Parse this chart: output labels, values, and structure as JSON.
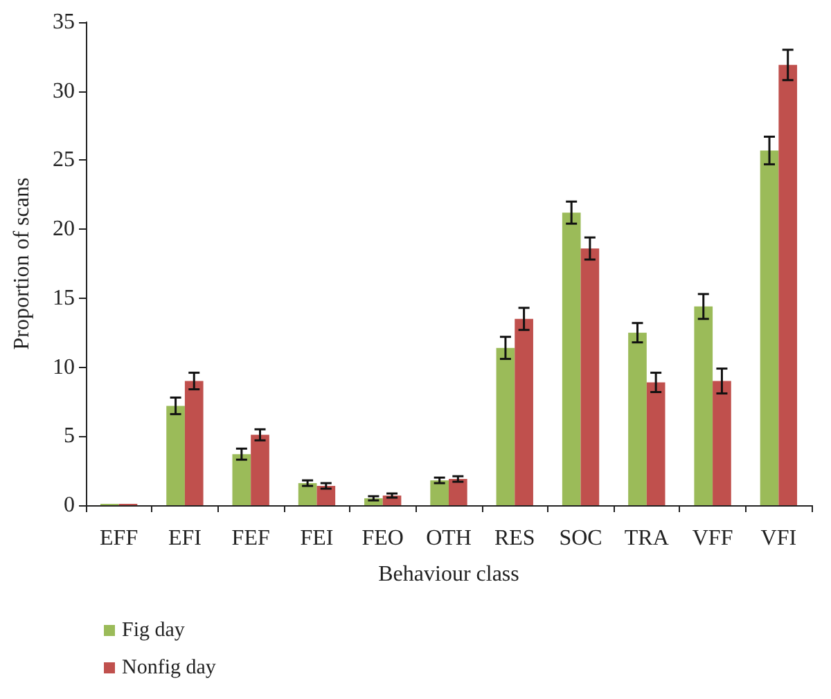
{
  "chart_data": {
    "type": "bar",
    "xlabel": "Behaviour class",
    "ylabel": "Proportion of scans",
    "categories": [
      "EFF",
      "EFI",
      "FEF",
      "FEI",
      "FEO",
      "OTH",
      "RES",
      "SOC",
      "TRA",
      "VFF",
      "VFI"
    ],
    "series": [
      {
        "name": "Fig day",
        "color": "#9bbb59",
        "values": [
          0.1,
          7.2,
          3.7,
          1.6,
          0.5,
          1.8,
          11.4,
          21.2,
          12.5,
          14.4,
          25.7
        ],
        "errors": [
          null,
          0.6,
          0.4,
          0.2,
          0.15,
          0.2,
          0.8,
          0.8,
          0.7,
          0.9,
          1.0
        ]
      },
      {
        "name": "Nonfig day",
        "color": "#c0504d",
        "values": [
          0.1,
          9.0,
          5.1,
          1.4,
          0.7,
          1.9,
          13.5,
          18.6,
          8.9,
          9.0,
          31.9
        ],
        "errors": [
          null,
          0.6,
          0.4,
          0.2,
          0.15,
          0.2,
          0.8,
          0.8,
          0.7,
          0.9,
          1.1
        ]
      }
    ],
    "ylim": [
      0,
      35
    ],
    "yticks": [
      0,
      5,
      10,
      15,
      20,
      25,
      30,
      35
    ],
    "grid": false,
    "legend": "bottom left"
  }
}
